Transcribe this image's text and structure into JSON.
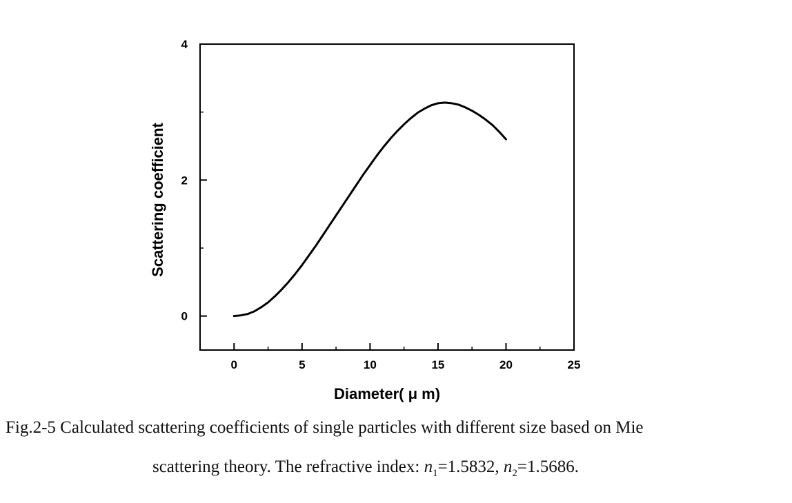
{
  "chart_data": {
    "type": "line",
    "xlabel": "Diameter( μ m)",
    "ylabel": "Scattering coefficient",
    "xlim": [
      -2.5,
      25
    ],
    "ylim": [
      -0.5,
      4
    ],
    "xticks": [
      0,
      5,
      10,
      15,
      20,
      25
    ],
    "yticks": [
      0,
      2,
      4
    ],
    "grid": false,
    "series": [
      {
        "x": [
          0,
          0.5,
          1,
          1.5,
          2,
          2.5,
          3,
          3.5,
          4,
          4.5,
          5,
          5.5,
          6,
          6.5,
          7,
          7.5,
          8,
          8.5,
          9,
          9.5,
          10,
          10.5,
          11,
          11.5,
          12,
          12.5,
          13,
          13.5,
          14,
          14.5,
          15,
          15.5,
          16,
          16.5,
          17,
          17.5,
          18,
          18.5,
          19,
          19.5,
          20
        ],
        "y": [
          0.0,
          0.01,
          0.03,
          0.07,
          0.13,
          0.2,
          0.29,
          0.39,
          0.5,
          0.62,
          0.75,
          0.89,
          1.03,
          1.18,
          1.33,
          1.48,
          1.63,
          1.78,
          1.93,
          2.08,
          2.22,
          2.36,
          2.49,
          2.61,
          2.72,
          2.82,
          2.91,
          2.99,
          3.05,
          3.1,
          3.13,
          3.14,
          3.13,
          3.11,
          3.07,
          3.02,
          2.96,
          2.89,
          2.81,
          2.71,
          2.6
        ]
      }
    ]
  },
  "caption": {
    "line1": "Fig.2-5 Calculated scattering coefficients of single particles with different size based on Mie",
    "line2_prefix": "scattering theory. The refractive index: ",
    "n1_symbol": "n",
    "n1_sub": "1",
    "n1_value": "=1.5832, ",
    "n2_symbol": "n",
    "n2_sub": "2",
    "n2_value": "=1.5686."
  }
}
